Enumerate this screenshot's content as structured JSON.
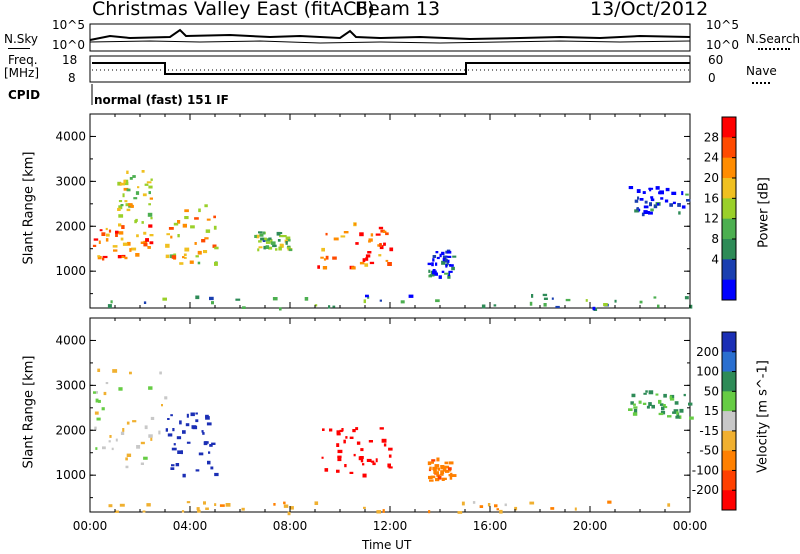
{
  "header": {
    "station": "Christmas Valley East (fitACF)",
    "beam": "Beam 13",
    "date": "13/Oct/2012"
  },
  "sky_panel": {
    "label_left": "N.Sky",
    "label_right": "N.Search",
    "left_ticks": [
      "10^5",
      "10^0"
    ],
    "right_ticks": [
      "10^5",
      "10^0"
    ]
  },
  "freq_panel": {
    "label_left_1": "Freq.",
    "label_left_2": "[MHz]",
    "label_right": "Nave",
    "left_ticks": [
      "18",
      "8"
    ],
    "right_ticks": [
      "60",
      "0"
    ],
    "cpid_label": "CPID",
    "cpid_text": "normal (fast) 151 IF"
  },
  "chart_data": [
    {
      "type": "heatmap",
      "parameter": "Power",
      "ylabel": "Slant Range [km]",
      "ylim": [
        180,
        4500
      ],
      "yticks": [
        "4000",
        "3000",
        "2000",
        "1000"
      ],
      "xlabel": "Time UT",
      "xticks": [
        "00:00",
        "04:00",
        "08:00",
        "12:00",
        "16:00",
        "20:00",
        "00:00"
      ],
      "colorbar": {
        "label": "Power [dB]",
        "ticks": [
          "28",
          "24",
          "20",
          "16",
          "12",
          "8",
          "4"
        ],
        "colors": [
          "#ff0000",
          "#ff4a00",
          "#ff8c00",
          "#f0c020",
          "#9ad02a",
          "#4caf50",
          "#2e8b57",
          "#1a3fb0",
          "#0000ff"
        ]
      },
      "regions": [
        {
          "t0": 0.1,
          "t1": 2.4,
          "r0": 1300,
          "r1": 2100,
          "value": 24
        },
        {
          "t0": 1.0,
          "t1": 2.5,
          "r0": 2100,
          "r1": 3300,
          "value": 18
        },
        {
          "t0": 3.0,
          "t1": 5.0,
          "r0": 1200,
          "r1": 2500,
          "value": 20
        },
        {
          "t0": 6.5,
          "t1": 8.0,
          "r0": 1500,
          "r1": 1900,
          "value": 14
        },
        {
          "t0": 9.0,
          "t1": 12.0,
          "r0": 1100,
          "r1": 2100,
          "value": 26
        },
        {
          "t0": 13.5,
          "t1": 14.5,
          "r0": 900,
          "r1": 1500,
          "value": 6
        },
        {
          "t0": 21.5,
          "t1": 24.0,
          "r0": 2300,
          "r1": 2900,
          "value": 6
        },
        {
          "t0": 0.0,
          "t1": 24.0,
          "r0": 180,
          "r1": 500,
          "value": 10
        }
      ]
    },
    {
      "type": "heatmap",
      "parameter": "Velocity",
      "ylabel": "Slant Range [km]",
      "ylim": [
        180,
        4500
      ],
      "yticks": [
        "4000",
        "3000",
        "2000",
        "1000"
      ],
      "xlabel": "Time UT",
      "xticks": [
        "00:00",
        "04:00",
        "08:00",
        "12:00",
        "16:00",
        "20:00",
        "00:00"
      ],
      "colorbar": {
        "label": "Velocity [m s^-1]",
        "ticks": [
          "200",
          "100",
          "50",
          "15",
          "-15",
          "-50",
          "-100",
          "-200"
        ],
        "colors": [
          "#1b2fb5",
          "#2a6fd0",
          "#2e8b57",
          "#66cc44",
          "#c8c8c8",
          "#f0b030",
          "#ff8000",
          "#ff4000",
          "#ff0000"
        ]
      },
      "regions": [
        {
          "t0": 0.1,
          "t1": 3.0,
          "r0": 1200,
          "r1": 3400,
          "value": 0
        },
        {
          "t0": 3.0,
          "t1": 5.0,
          "r0": 1000,
          "r1": 2400,
          "value": 250
        },
        {
          "t0": 9.0,
          "t1": 12.0,
          "r0": 1000,
          "r1": 2100,
          "value": -250
        },
        {
          "t0": 13.5,
          "t1": 14.5,
          "r0": 900,
          "r1": 1400,
          "value": -80
        },
        {
          "t0": 0.0,
          "t1": 24.0,
          "r0": 180,
          "r1": 450,
          "value": -40
        },
        {
          "t0": 21.5,
          "t1": 24.0,
          "r0": 2300,
          "r1": 2900,
          "value": 60
        }
      ]
    }
  ]
}
